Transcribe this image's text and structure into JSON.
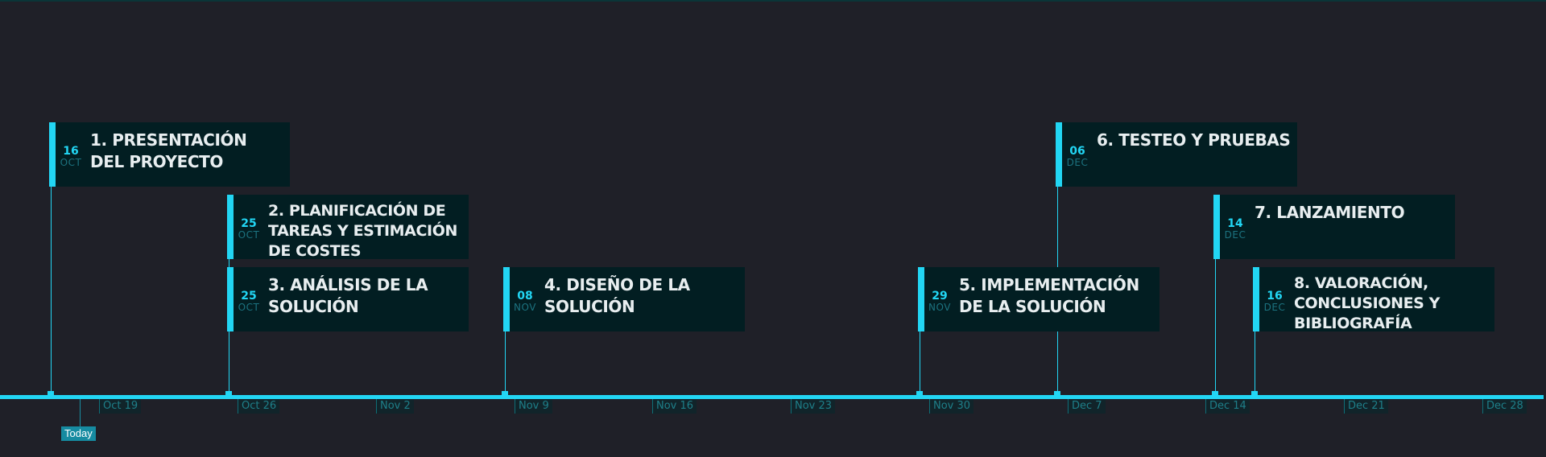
{
  "timeline": {
    "accent_color": "#22d6f4",
    "background_color": "#1f2028",
    "card_color": "#021e22",
    "today_label": "Today",
    "ticks": [
      "Oct 19",
      "Oct 26",
      "Nov 2",
      "Nov 9",
      "Nov 16",
      "Nov 23",
      "Nov 30",
      "Dec 7",
      "Dec 14",
      "Dec 21",
      "Dec 28"
    ],
    "milestones": [
      {
        "day": "16",
        "month": "OCT",
        "title": "1. PRESENTACIÓN DEL PROYECTO"
      },
      {
        "day": "25",
        "month": "OCT",
        "title": "2. PLANIFICACIÓN DE TAREAS Y ESTIMACIÓN DE COSTES"
      },
      {
        "day": "25",
        "month": "OCT",
        "title": "3. ANÁLISIS DE LA SOLUCIÓN"
      },
      {
        "day": "08",
        "month": "NOV",
        "title": "4. DISEÑO DE LA SOLUCIÓN"
      },
      {
        "day": "29",
        "month": "NOV",
        "title": "5. IMPLEMENTACIÓN DE LA SOLUCIÓN"
      },
      {
        "day": "06",
        "month": "DEC",
        "title": "6. TESTEO Y PRUEBAS"
      },
      {
        "day": "14",
        "month": "DEC",
        "title": "7. LANZAMIENTO"
      },
      {
        "day": "16",
        "month": "DEC",
        "title": "8. VALORACIÓN, CONCLUSIONES Y BIBLIOGRAFÍA"
      }
    ]
  }
}
